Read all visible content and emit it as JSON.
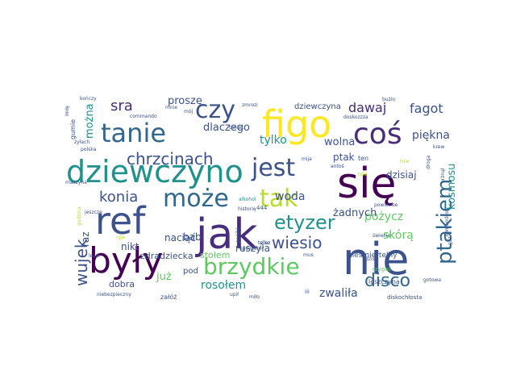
{
  "words": [
    {
      "text": "nie",
      "color": "#3b528b"
    },
    {
      "text": "się",
      "color": "#440154"
    },
    {
      "text": "jak",
      "color": "#472d7b"
    },
    {
      "text": "były",
      "color": "#440154"
    },
    {
      "text": "ref",
      "color": "#3b528b"
    },
    {
      "text": "dziewczyno",
      "color": "#21918c"
    },
    {
      "text": "figo",
      "color": "#fde725"
    },
    {
      "text": "coś",
      "color": "#472d7b"
    },
    {
      "text": "tanie",
      "color": "#31688e"
    },
    {
      "text": "może",
      "color": "#31688e"
    },
    {
      "text": "czy",
      "color": "#3b528b"
    },
    {
      "text": "jest",
      "color": "#3b528b"
    },
    {
      "text": "tak",
      "color": "#b5de2b"
    },
    {
      "text": "etyzer",
      "color": "#21918c"
    },
    {
      "text": "brzydkie",
      "color": "#5ec962"
    },
    {
      "text": "ptakiem",
      "color": "#31688e"
    },
    {
      "text": "wujek",
      "color": "#3b528b"
    },
    {
      "text": "chrzcinach",
      "color": "#3b528b"
    },
    {
      "text": "konia",
      "color": "#3b528b"
    },
    {
      "text": "sra",
      "color": "#472d7b"
    },
    {
      "text": "wiesio",
      "color": "#3b528b"
    },
    {
      "text": "disco",
      "color": "#31688e"
    },
    {
      "text": "dawaj",
      "color": "#482878"
    },
    {
      "text": "fagot",
      "color": "#3b528b"
    },
    {
      "text": "proszę",
      "color": "#3b528b"
    },
    {
      "text": "dlaczego",
      "color": "#3b528b"
    },
    {
      "text": "tylko",
      "color": "#21918c"
    },
    {
      "text": "woda",
      "color": "#3b528b"
    },
    {
      "text": "pożycz",
      "color": "#5ec962"
    },
    {
      "text": "piękna",
      "color": "#3b528b"
    },
    {
      "text": "kosmosu",
      "color": "#21918c"
    },
    {
      "text": "dzisiaj",
      "color": "#3b528b"
    },
    {
      "text": "wolna",
      "color": "#3b528b"
    },
    {
      "text": "ptak",
      "color": "#3b528b"
    },
    {
      "text": "żadnych",
      "color": "#3b528b"
    },
    {
      "text": "skórą",
      "color": "#5ec962"
    },
    {
      "text": "zwaliła",
      "color": "#3b528b"
    },
    {
      "text": "rosołem",
      "color": "#21918c"
    },
    {
      "text": "ruszyła",
      "color": "#3b528b"
    },
    {
      "text": "naciąć",
      "color": "#3b528b"
    },
    {
      "text": "raz",
      "color": "#3b528b"
    },
    {
      "text": "nikt",
      "color": "#3b528b"
    },
    {
      "text": "bab",
      "color": "#3b528b"
    },
    {
      "text": "już",
      "color": "#5ec962"
    },
    {
      "text": "można",
      "color": "#21918c"
    },
    {
      "text": "dobra",
      "color": "#3b528b"
    },
    {
      "text": "stołem",
      "color": "#5ec962"
    },
    {
      "text": "zdradziecka",
      "color": "#3b528b"
    },
    {
      "text": "pod",
      "color": "#3b528b"
    },
    {
      "text": "dziewczyna",
      "color": "#3b528b"
    },
    {
      "text": "nieśmiertelny",
      "color": "#3b528b"
    },
    {
      "text": "leszczyna",
      "color": "#3b528b"
    },
    {
      "text": "diskochłosta",
      "color": "#3b528b"
    },
    {
      "text": "gumie",
      "color": "#3b528b"
    },
    {
      "text": "kończy",
      "color": "#3b528b"
    },
    {
      "text": "mnie",
      "color": "#3b528b"
    },
    {
      "text": "mój",
      "color": "#3b528b"
    },
    {
      "text": "zmrozi",
      "color": "#3b528b"
    },
    {
      "text": "bużio",
      "color": "#3b528b"
    },
    {
      "text": "commando",
      "color": "#3b528b"
    },
    {
      "text": "taniec",
      "color": "#3b528b"
    },
    {
      "text": "doskozzza",
      "color": "#3b528b"
    },
    {
      "text": "imię",
      "color": "#3b528b"
    },
    {
      "text": "żyłach",
      "color": "#3b528b"
    },
    {
      "text": "polska",
      "color": "#3b528b"
    },
    {
      "text": "mija",
      "color": "#3b528b"
    },
    {
      "text": "antoś",
      "color": "#3b528b"
    },
    {
      "text": "krew",
      "color": "#3b528b"
    },
    {
      "text": "maszyna",
      "color": "#3b528b"
    },
    {
      "text": "jeszcze",
      "color": "#3b528b"
    },
    {
      "text": "alkohol",
      "color": "#21918c"
    },
    {
      "text": "powietrze",
      "color": "#3b528b"
    },
    {
      "text": "historię",
      "color": "#3b528b"
    },
    {
      "text": "godzina",
      "color": "#b5de2b"
    },
    {
      "text": "opowiem",
      "color": "#3b528b"
    },
    {
      "text": "świecie",
      "color": "#3b528b"
    },
    {
      "text": "komandos",
      "color": "#3b528b"
    },
    {
      "text": "leżał",
      "color": "#3b528b"
    },
    {
      "text": "gotowa",
      "color": "#3b528b"
    },
    {
      "text": "rzygać",
      "color": "#5ec962"
    },
    {
      "text": "niebezpieczny",
      "color": "#3b528b"
    },
    {
      "text": "załóż",
      "color": "#3b528b"
    },
    {
      "text": "upił",
      "color": "#3b528b"
    },
    {
      "text": "miło",
      "color": "#3b528b"
    },
    {
      "text": "iii",
      "color": "#3b528b"
    },
    {
      "text": "dziś",
      "color": "#3b528b"
    },
    {
      "text": "urżnął",
      "color": "#3b528b"
    },
    {
      "text": "droga",
      "color": "#3b528b"
    },
    {
      "text": "444",
      "color": "#3b528b"
    },
    {
      "text": "ten",
      "color": "#3b528b"
    },
    {
      "text": "tnie",
      "color": "#b5de2b"
    },
    {
      "text": "tyle",
      "color": "#b5de2b"
    },
    {
      "text": "ryje",
      "color": "#b5de2b"
    },
    {
      "text": "mus",
      "color": "#3b528b"
    },
    {
      "text": "paniki",
      "color": "#3b528b"
    },
    {
      "text": "gaz",
      "color": "#3b528b"
    },
    {
      "text": "teraz",
      "color": "#3b528b"
    },
    {
      "text": "tylko",
      "color": "#3b528b"
    }
  ]
}
